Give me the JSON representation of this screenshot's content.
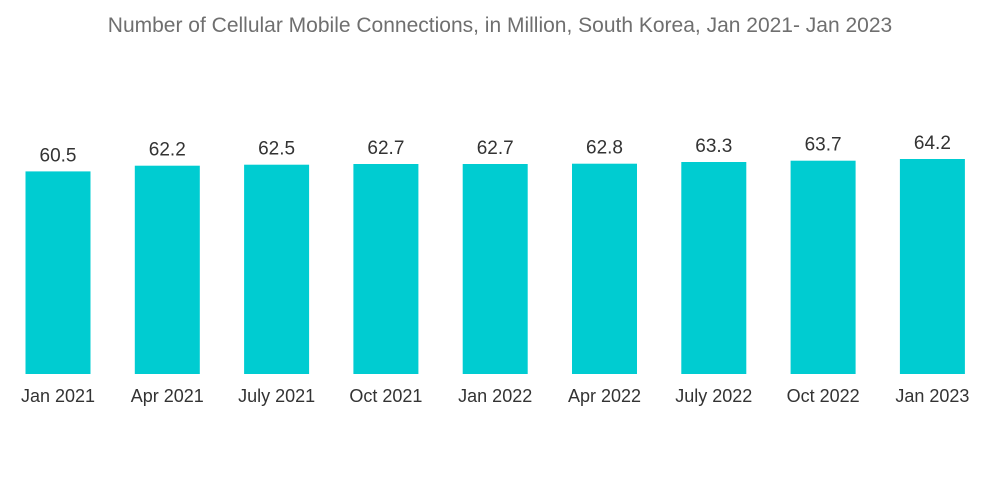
{
  "chart_data": {
    "type": "bar",
    "title": "Number of Cellular Mobile Connections, in Million, South Korea, Jan 2021- Jan 2023",
    "xlabel": "",
    "ylabel": "",
    "categories": [
      "Jan 2021",
      "Apr 2021",
      "July 2021",
      "Oct 2021",
      "Jan 2022",
      "Apr 2022",
      "July 2022",
      "Oct 2022",
      "Jan 2023"
    ],
    "values": [
      60.5,
      62.2,
      62.5,
      62.7,
      62.7,
      62.8,
      63.3,
      63.7,
      64.2
    ],
    "value_labels": [
      "60.5",
      "62.2",
      "62.5",
      "62.7",
      "62.7",
      "62.8",
      "63.3",
      "63.7",
      "64.2"
    ],
    "ylim": [
      0,
      64.2
    ],
    "grid": false,
    "legend": "none",
    "colors": {
      "bar": "#00ccd1"
    }
  }
}
